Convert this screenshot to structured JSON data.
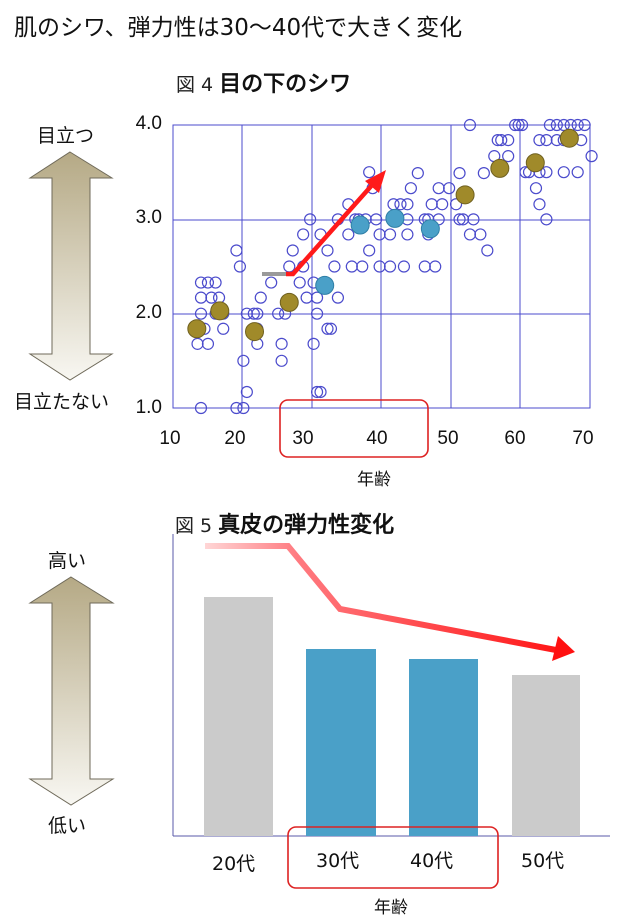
{
  "headline": "肌のシワ、弾力性は30～40代で大きく変化",
  "figure4": {
    "label_num": "図 4",
    "label_name": "目の下のシワ",
    "y_top_label": "目立つ",
    "y_bottom_label": "目立たない",
    "x_axis_title": "年齢",
    "y_ticks": [
      "4.0",
      "3.0",
      "2.0",
      "1.0"
    ],
    "x_ticks": [
      "10",
      "20",
      "30",
      "40",
      "50",
      "60",
      "70"
    ]
  },
  "figure5": {
    "label_num": "図 5",
    "label_name": "真皮の弾力性変化",
    "y_top_label": "高い",
    "y_bottom_label": "低い",
    "x_axis_title": "年齢",
    "categories": [
      "20代",
      "30代",
      "40代",
      "50代"
    ]
  },
  "colors": {
    "grid": "#4b4bcc",
    "open_point": "#4b4bcc",
    "mean_gold": "#a08a2a",
    "mean_blue": "#4aa0c8",
    "bar_gray": "#cbcbcb",
    "bar_blue": "#4aa0c8",
    "highlight_box": "#dd2222",
    "trend_arrow": "#ff1a1a",
    "side_arrow_top": "#b8ac8c",
    "side_arrow_bottom": "#f6f4ee"
  },
  "chart_data": [
    {
      "type": "scatter",
      "title": "図 4 目の下のシワ",
      "xlabel": "年齢",
      "ylabel": "目立つ ↔ 目立たない",
      "xlim": [
        10,
        70
      ],
      "ylim": [
        1.0,
        4.0
      ],
      "x_ticks": [
        10,
        20,
        30,
        40,
        50,
        60,
        70
      ],
      "y_ticks": [
        1.0,
        2.0,
        3.0,
        4.0
      ],
      "grid": true,
      "series": [
        {
          "name": "individual",
          "style": "open-circle",
          "points": [
            [
              14.1,
              2.33
            ],
            [
              15.1,
              2.33
            ],
            [
              16.2,
              2.33
            ],
            [
              14.1,
              2.17
            ],
            [
              15.6,
              2.17
            ],
            [
              16.7,
              2.17
            ],
            [
              14.1,
              2.0
            ],
            [
              16.2,
              2.0
            ],
            [
              17.3,
              2.0
            ],
            [
              14.6,
              1.84
            ],
            [
              17.3,
              1.84
            ],
            [
              13.6,
              1.68
            ],
            [
              15.1,
              1.68
            ],
            [
              14.1,
              1.0
            ],
            [
              19.2,
              2.67
            ],
            [
              19.7,
              2.5
            ],
            [
              20.7,
              2.0
            ],
            [
              21.7,
              2.0
            ],
            [
              22.2,
              1.84
            ],
            [
              20.2,
              1.5
            ],
            [
              20.7,
              1.17
            ],
            [
              19.2,
              1.0
            ],
            [
              20.2,
              1.0
            ],
            [
              22.2,
              1.68
            ],
            [
              22.7,
              2.17
            ],
            [
              22.2,
              2.0
            ],
            [
              24.2,
              2.33
            ],
            [
              25.2,
              2.0
            ],
            [
              25.7,
              1.68
            ],
            [
              26.2,
              2.0
            ],
            [
              25.7,
              1.5
            ],
            [
              26.8,
              2.5
            ],
            [
              27.3,
              2.67
            ],
            [
              28.3,
              2.33
            ],
            [
              28.8,
              2.5
            ],
            [
              28.8,
              2.84
            ],
            [
              29.8,
              3.0
            ],
            [
              29.3,
              2.17
            ],
            [
              30.3,
              2.33
            ],
            [
              30.8,
              2.17
            ],
            [
              30.8,
              2.0
            ],
            [
              30.3,
              1.68
            ],
            [
              30.8,
              1.17
            ],
            [
              31.3,
              1.17
            ],
            [
              31.3,
              2.84
            ],
            [
              32.3,
              2.67
            ],
            [
              33.3,
              2.5
            ],
            [
              33.8,
              2.17
            ],
            [
              32.3,
              1.84
            ],
            [
              32.8,
              1.84
            ],
            [
              33.8,
              3.0
            ],
            [
              35.3,
              3.16
            ],
            [
              35.3,
              2.84
            ],
            [
              36.3,
              3.0
            ],
            [
              36.8,
              3.0
            ],
            [
              37.8,
              3.0
            ],
            [
              35.8,
              2.5
            ],
            [
              37.3,
              2.5
            ],
            [
              38.3,
              2.67
            ],
            [
              38.3,
              3.5
            ],
            [
              38.8,
              3.33
            ],
            [
              39.3,
              3.0
            ],
            [
              39.8,
              2.5
            ],
            [
              39.8,
              2.84
            ],
            [
              41.8,
              3.16
            ],
            [
              42.8,
              3.16
            ],
            [
              43.8,
              3.16
            ],
            [
              43.8,
              3.0
            ],
            [
              41.3,
              2.84
            ],
            [
              43.8,
              2.84
            ],
            [
              44.3,
              3.33
            ],
            [
              45.3,
              3.49
            ],
            [
              41.3,
              2.5
            ],
            [
              43.3,
              2.5
            ],
            [
              46.3,
              3.0
            ],
            [
              46.8,
              3.0
            ],
            [
              46.8,
              2.84
            ],
            [
              48.3,
              3.0
            ],
            [
              48.8,
              3.16
            ],
            [
              47.3,
              3.16
            ],
            [
              46.3,
              2.5
            ],
            [
              47.8,
              2.5
            ],
            [
              48.3,
              3.33
            ],
            [
              49.8,
              3.33
            ],
            [
              51.3,
              3.0
            ],
            [
              51.8,
              3.0
            ],
            [
              52.8,
              2.84
            ],
            [
              50.8,
              3.16
            ],
            [
              53.3,
              3.0
            ],
            [
              54.3,
              2.84
            ],
            [
              55.3,
              2.67
            ],
            [
              51.3,
              3.49
            ],
            [
              52.8,
              4.0
            ],
            [
              54.8,
              3.49
            ],
            [
              56.3,
              3.67
            ],
            [
              57.3,
              3.84
            ],
            [
              58.3,
              3.84
            ],
            [
              56.8,
              3.84
            ],
            [
              58.3,
              3.67
            ],
            [
              59.3,
              4.0
            ],
            [
              59.8,
              4.0
            ],
            [
              60.3,
              4.0
            ],
            [
              60.8,
              3.5
            ],
            [
              61.3,
              3.5
            ],
            [
              62.8,
              3.5
            ],
            [
              63.8,
              3.5
            ],
            [
              62.3,
              3.33
            ],
            [
              62.8,
              3.16
            ],
            [
              63.8,
              3.0
            ],
            [
              62.8,
              3.84
            ],
            [
              63.8,
              3.84
            ],
            [
              64.3,
              4.0
            ],
            [
              65.3,
              4.0
            ],
            [
              66.3,
              4.0
            ],
            [
              67.3,
              4.0
            ],
            [
              68.3,
              4.0
            ],
            [
              69.3,
              4.0
            ],
            [
              65.3,
              3.84
            ],
            [
              66.3,
              3.84
            ],
            [
              68.8,
              3.84
            ],
            [
              70.3,
              3.67
            ],
            [
              68.3,
              3.5
            ],
            [
              66.3,
              3.5
            ]
          ]
        },
        {
          "name": "mean (gold)",
          "style": "filled-circle",
          "points": [
            [
              13.5,
              1.84
            ],
            [
              16.8,
              2.03
            ],
            [
              21.8,
              1.81
            ],
            [
              26.8,
              2.12
            ],
            [
              52.1,
              3.26
            ],
            [
              57.1,
              3.54
            ],
            [
              62.2,
              3.6
            ],
            [
              67.1,
              3.86
            ]
          ]
        },
        {
          "name": "mean 30-40代 (blue)",
          "style": "filled-circle",
          "points": [
            [
              31.9,
              2.3
            ],
            [
              37.0,
              2.94
            ],
            [
              42.0,
              3.01
            ],
            [
              47.1,
              2.9
            ]
          ]
        }
      ],
      "annotations": [
        {
          "type": "arrow",
          "color": "red",
          "from": [
            27.0,
            2.43
          ],
          "to": [
            40.5,
            3.52
          ]
        },
        {
          "type": "line",
          "color": "gray",
          "from": [
            23.0,
            2.43
          ],
          "to": [
            26.8,
            2.43
          ]
        },
        {
          "type": "highlight-box",
          "x_range": [
            26.5,
            46.5
          ],
          "label": "30-40"
        }
      ]
    },
    {
      "type": "bar",
      "title": "図 5 真皮の弾力性変化",
      "xlabel": "年齢",
      "ylabel": "高い ↔ 低い",
      "categories": [
        "20代",
        "30代",
        "40代",
        "50代"
      ],
      "values": [
        100,
        78,
        74,
        67
      ],
      "value_unit": "relative (pixel-estimated, no axis scale shown)",
      "bar_colors": [
        "gray",
        "blue",
        "blue",
        "gray"
      ],
      "annotations": [
        {
          "type": "trend-arrow",
          "color": "red",
          "description": "decreasing trend from 20代 to 50代"
        },
        {
          "type": "highlight-box",
          "categories": [
            "30代",
            "40代"
          ]
        }
      ]
    }
  ]
}
